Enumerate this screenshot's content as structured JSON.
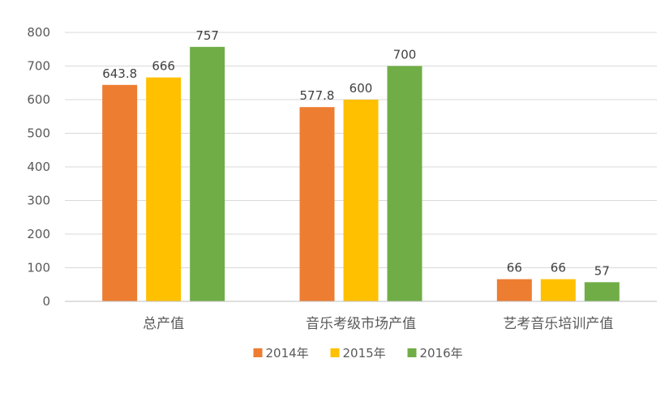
{
  "chart_data": {
    "type": "bar",
    "categories": [
      "总产值",
      "音乐考级市场产值",
      "艺考音乐培训产值"
    ],
    "series": [
      {
        "name": "2014年",
        "values": [
          643.8,
          577.8,
          66
        ],
        "color": "#ed7d31"
      },
      {
        "name": "2015年",
        "values": [
          666,
          600,
          66
        ],
        "color": "#ffc000"
      },
      {
        "name": "2016年",
        "values": [
          757,
          700,
          57
        ],
        "color": "#70ad47"
      }
    ],
    "data_labels": [
      [
        "643.8",
        "577.8",
        "66"
      ],
      [
        "666",
        "600",
        "66"
      ],
      [
        "757",
        "700",
        "57"
      ]
    ],
    "yticks": [
      0,
      100,
      200,
      300,
      400,
      500,
      600,
      700,
      800
    ],
    "ylim": [
      0,
      800
    ],
    "grid": true,
    "legend_position": "bottom"
  }
}
